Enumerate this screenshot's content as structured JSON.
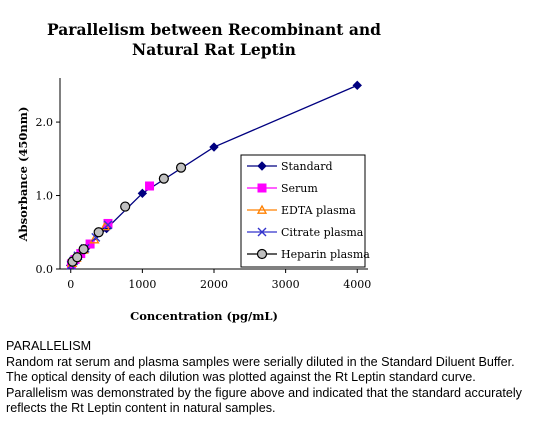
{
  "chart_data": {
    "type": "scatter",
    "title_lines": [
      "Parallelism between Recombinant and",
      "Natural Rat Leptin"
    ],
    "xlabel": "Concentration (pg/mL)",
    "ylabel": "Absorbance (450nm)",
    "xlim": [
      -150,
      4150
    ],
    "ylim": [
      0,
      2.6
    ],
    "x_ticks": [
      "0",
      "1000",
      "2000",
      "3000",
      "4000"
    ],
    "y_ticks": [
      "0.0",
      "1.0",
      "2.0"
    ],
    "grid": false,
    "legend_position": "right",
    "series": [
      {
        "name": "Standard",
        "marker": "diamond",
        "color": "#000080",
        "line": true,
        "x": [
          0,
          15.6,
          31.25,
          62.5,
          125,
          250,
          500,
          1000,
          2000,
          4000
        ],
        "y": [
          0.05,
          0.07,
          0.09,
          0.13,
          0.2,
          0.32,
          0.55,
          1.03,
          1.66,
          2.5
        ]
      },
      {
        "name": "Serum",
        "marker": "square",
        "color": "#ff00ff",
        "line": false,
        "x": [
          10,
          60,
          140,
          270,
          520,
          1100
        ],
        "y": [
          0.07,
          0.13,
          0.21,
          0.34,
          0.62,
          1.13
        ]
      },
      {
        "name": "EDTA plasma",
        "marker": "triangle",
        "color": "#ff8000",
        "line": false,
        "x": [
          20,
          80,
          180,
          330,
          480
        ],
        "y": [
          0.08,
          0.15,
          0.26,
          0.4,
          0.58
        ]
      },
      {
        "name": "Citrate plasma",
        "marker": "x",
        "color": "#3333cc",
        "line": false,
        "x": [
          5,
          40,
          100,
          200,
          350,
          520
        ],
        "y": [
          0.05,
          0.11,
          0.18,
          0.28,
          0.43,
          0.6
        ]
      },
      {
        "name": "Heparin plasma",
        "marker": "circle",
        "color": "#000000",
        "line": false,
        "x": [
          25,
          90,
          180,
          390,
          760,
          1300,
          1540
        ],
        "y": [
          0.1,
          0.16,
          0.27,
          0.5,
          0.85,
          1.23,
          1.38
        ]
      }
    ]
  },
  "caption": {
    "heading": "PARALLELISM",
    "body": "Random rat serum and plasma samples were serially diluted in the Standard Diluent Buffer. The optical density of each dilution was plotted against the Rt Leptin standard curve. Parallelism was demonstrated by the figure above and indicated that the standard accurately reflects the Rt Leptin content in natural samples."
  }
}
